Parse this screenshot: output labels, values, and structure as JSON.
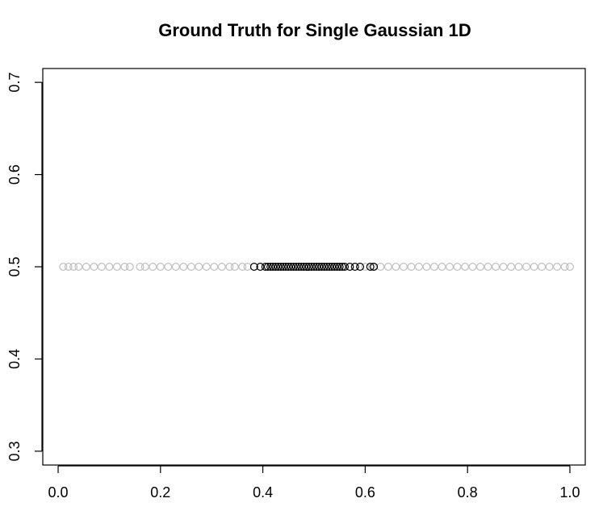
{
  "chart_data": {
    "type": "scatter",
    "title": "Ground Truth for Single Gaussian 1D",
    "xlabel": "",
    "ylabel": "",
    "xlim": [
      -0.03,
      1.03
    ],
    "ylim": [
      0.285,
      0.715
    ],
    "x_ticks": [
      0.0,
      0.2,
      0.4,
      0.6,
      0.8,
      1.0
    ],
    "x_tick_labels": [
      "0.0",
      "0.2",
      "0.4",
      "0.6",
      "0.8",
      "1.0"
    ],
    "y_ticks": [
      0.3,
      0.4,
      0.5,
      0.6,
      0.7
    ],
    "y_tick_labels": [
      "0.3",
      "0.4",
      "0.5",
      "0.6",
      "0.7"
    ],
    "grid": false,
    "marker": "open-circle",
    "series": [
      {
        "color": "#bfbfbf",
        "y": 0.5,
        "x": [
          0.01,
          0.02,
          0.03,
          0.04,
          0.055,
          0.07,
          0.085,
          0.1,
          0.115,
          0.13,
          0.14,
          0.16,
          0.17,
          0.185,
          0.2,
          0.215,
          0.23,
          0.245,
          0.26,
          0.275,
          0.29,
          0.305,
          0.32,
          0.335,
          0.345,
          0.36,
          0.37,
          0.6,
          0.615,
          0.63,
          0.645,
          0.66,
          0.675,
          0.69,
          0.705,
          0.72,
          0.735,
          0.75,
          0.765,
          0.78,
          0.795,
          0.81,
          0.825,
          0.84,
          0.855,
          0.87,
          0.885,
          0.9,
          0.915,
          0.93,
          0.945,
          0.96,
          0.975,
          0.99,
          1.0
        ]
      },
      {
        "color": "#000000",
        "y": 0.5,
        "x": [
          0.383,
          0.395,
          0.405,
          0.41,
          0.415,
          0.42,
          0.425,
          0.43,
          0.435,
          0.44,
          0.445,
          0.45,
          0.455,
          0.46,
          0.465,
          0.47,
          0.475,
          0.48,
          0.485,
          0.49,
          0.495,
          0.5,
          0.505,
          0.51,
          0.515,
          0.52,
          0.525,
          0.53,
          0.535,
          0.54,
          0.545,
          0.55,
          0.555,
          0.56,
          0.57,
          0.58,
          0.59,
          0.61,
          0.617
        ]
      }
    ]
  }
}
